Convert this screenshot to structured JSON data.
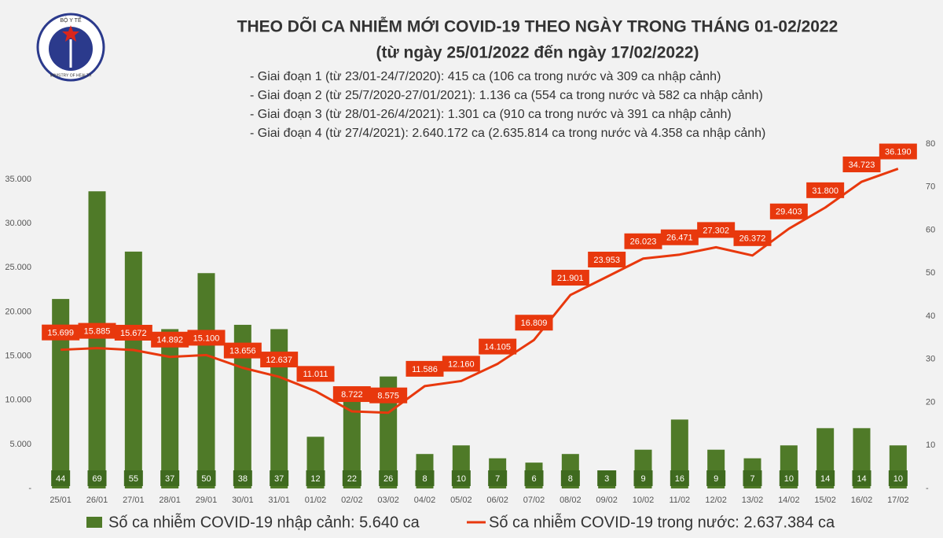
{
  "logo": {
    "top": "BỘ Y TẾ",
    "bottom": "MINISTRY OF HEALTH"
  },
  "chart_data": {
    "type": "combo",
    "title": "THEO DÕI CA NHIỄM MỚI COVID-19 THEO NGÀY TRONG THÁNG 01-02/2022",
    "subtitle": "(từ ngày 25/01/2022 đến ngày 17/02/2022)",
    "annotations": [
      "- Giai đoạn 1 (từ 23/01-24/7/2020): 415 ca (106 ca trong nước và 309 ca nhập cảnh)",
      "- Giai đoạn 2 (từ 25/7/2020-27/01/2021): 1.136 ca (554 ca trong nước và 582 ca nhập cảnh)",
      "- Giai đoạn 3 (từ 28/01-26/4/2021): 1.301 ca (910 ca trong nước và 391 ca nhập cảnh)",
      "- Giai đoạn 4 (từ 27/4/2021): 2.640.172 ca (2.635.814 ca trong nước và 4.358 ca nhập cảnh)"
    ],
    "categories": [
      "25/01",
      "26/01",
      "27/01",
      "28/01",
      "29/01",
      "30/01",
      "31/01",
      "01/02",
      "02/02",
      "03/02",
      "04/02",
      "05/02",
      "06/02",
      "07/02",
      "08/02",
      "09/02",
      "10/02",
      "11/02",
      "12/02",
      "13/02",
      "14/02",
      "15/02",
      "16/02",
      "17/02"
    ],
    "series": [
      {
        "name": "Số ca nhiễm COVID-19 nhập cảnh: 5.640 ca",
        "type": "bar",
        "axis": "y2",
        "color": "#4f7a28",
        "values": [
          44,
          69,
          55,
          37,
          50,
          38,
          37,
          12,
          22,
          26,
          8,
          10,
          7,
          6,
          8,
          3,
          9,
          16,
          9,
          7,
          10,
          14,
          14,
          10
        ]
      },
      {
        "name": "Số ca nhiễm COVID-19 trong nước: 2.637.384 ca",
        "type": "line",
        "color": "#e8380d",
        "values": [
          15699,
          15885,
          15672,
          14892,
          15100,
          13656,
          12637,
          11011,
          8722,
          8575,
          11586,
          12160,
          14105,
          16809,
          21901,
          23953,
          26023,
          26471,
          27302,
          26372,
          29403,
          31800,
          34723,
          36190
        ],
        "value_labels": [
          "15.699",
          "15.885",
          "15.672",
          "14.892",
          "15.100",
          "13.656",
          "12.637",
          "11.011",
          "8.722",
          "8.575",
          "11.586",
          "12.160",
          "14.105",
          "16.809",
          "21.901",
          "23.953",
          "26.023",
          "26.471",
          "27.302",
          "26.372",
          "29.403",
          "31.800",
          "34.723",
          "36.190"
        ]
      }
    ],
    "ylim": [
      0,
      39000
    ],
    "yticks": [
      {
        "value": 0,
        "label": "-"
      },
      {
        "value": 5000,
        "label": "5.000"
      },
      {
        "value": 10000,
        "label": "10.000"
      },
      {
        "value": 15000,
        "label": "15.000"
      },
      {
        "value": 20000,
        "label": "20.000"
      },
      {
        "value": 25000,
        "label": "25.000"
      },
      {
        "value": 30000,
        "label": "30.000"
      },
      {
        "value": 35000,
        "label": "35.000"
      }
    ],
    "y2lim": [
      0,
      80
    ],
    "y2ticks": [
      {
        "value": 0,
        "label": "-"
      },
      10,
      20,
      30,
      40,
      50,
      60,
      70,
      80
    ]
  }
}
